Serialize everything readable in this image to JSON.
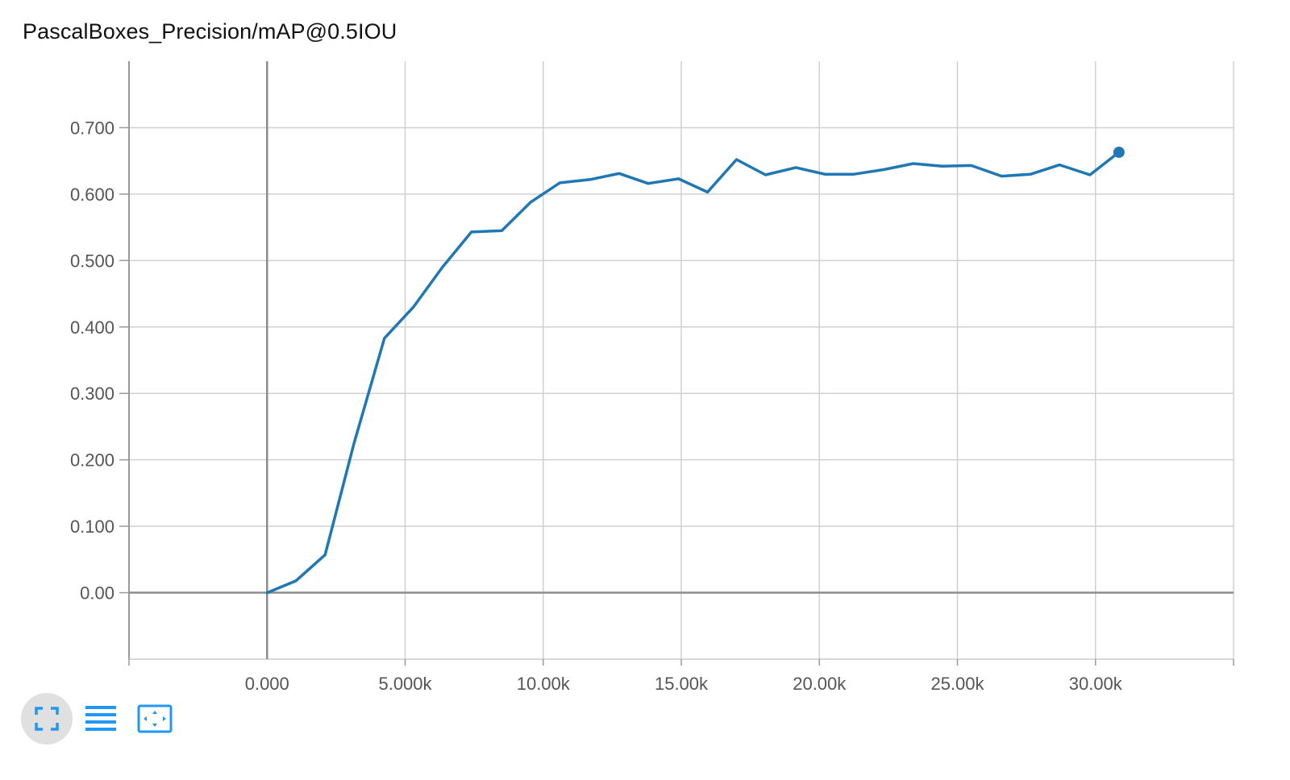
{
  "chart_data": {
    "type": "line",
    "title": "PascalBoxes_Precision/mAP@0.5IOU",
    "xlabel": "",
    "ylabel": "",
    "xlim": [
      -5000,
      35000
    ],
    "ylim": [
      -0.1,
      0.8
    ],
    "x_ticks": [
      0,
      5000,
      10000,
      15000,
      20000,
      25000,
      30000
    ],
    "x_tick_labels": [
      "0.000",
      "5.000k",
      "10.00k",
      "15.00k",
      "20.00k",
      "25.00k",
      "30.00k"
    ],
    "y_ticks": [
      0,
      0.1,
      0.2,
      0.3,
      0.4,
      0.5,
      0.6,
      0.7
    ],
    "y_tick_labels": [
      "0.00",
      "0.100",
      "0.200",
      "0.300",
      "0.400",
      "0.500",
      "0.600",
      "0.700"
    ],
    "grid": true,
    "legend": "none",
    "series": [
      {
        "color": "#1f77b4",
        "x": [
          0,
          1050,
          2100,
          3150,
          4250,
          5300,
          6350,
          7400,
          8500,
          9550,
          10600,
          11700,
          12750,
          13800,
          14900,
          15950,
          17000,
          18050,
          19150,
          20200,
          21250,
          22350,
          23400,
          24450,
          25500,
          26600,
          27650,
          28700,
          29800,
          30850
        ],
        "y": [
          0.0,
          0.018,
          0.057,
          0.225,
          0.383,
          0.43,
          0.49,
          0.543,
          0.545,
          0.588,
          0.617,
          0.622,
          0.631,
          0.616,
          0.623,
          0.603,
          0.652,
          0.629,
          0.64,
          0.63,
          0.63,
          0.637,
          0.646,
          0.642,
          0.643,
          0.627,
          0.63,
          0.644,
          0.629,
          0.663
        ]
      }
    ]
  },
  "toolbar": {
    "buttons": [
      {
        "icon": "fullscreen-icon",
        "active": true
      },
      {
        "icon": "list-icon",
        "active": false
      },
      {
        "icon": "fit-domain-icon",
        "active": false
      }
    ],
    "accent_color": "#2196f3"
  }
}
